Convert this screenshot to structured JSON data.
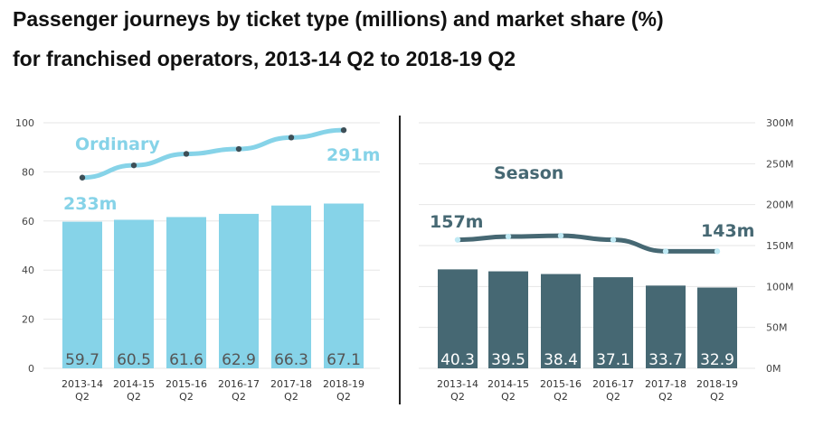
{
  "title_line1": "Passenger journeys by ticket type (millions) and market share (%)",
  "title_line2": "for franchised operators, 2013-14 Q2 to 2018-19 Q2",
  "colors": {
    "ordinary_bar": "#86d3e8",
    "ordinary_line": "#86d3e8",
    "season_bar": "#466873",
    "season_line": "#466873",
    "marker_dark": "#3d4f57",
    "marker_light": "#bfe9f4",
    "divider": "#222222"
  },
  "chart_data": [
    {
      "type": "bar",
      "name": "ordinary",
      "categories": [
        [
          "2013-14",
          "Q2"
        ],
        [
          "2014-15",
          "Q2"
        ],
        [
          "2015-16",
          "Q2"
        ],
        [
          "2016-17",
          "Q2"
        ],
        [
          "2017-18",
          "Q2"
        ],
        [
          "2018-19",
          "Q2"
        ]
      ],
      "values": [
        59.7,
        60.5,
        61.6,
        62.9,
        66.3,
        67.1
      ],
      "value_labels": [
        "59.7",
        "60.5",
        "61.6",
        "62.9",
        "66.3",
        "67.1"
      ],
      "ylim": [
        0,
        100
      ],
      "yticks": [
        0,
        20,
        40,
        60,
        80,
        100
      ],
      "line": {
        "name": "Ordinary",
        "values": [
          233,
          248,
          262,
          268,
          282,
          291
        ],
        "ylim": [
          0,
          300
        ],
        "start_label": "233m",
        "end_label": "291m"
      },
      "grid": true
    },
    {
      "type": "bar",
      "name": "season",
      "categories": [
        [
          "2013-14",
          "Q2"
        ],
        [
          "2014-15",
          "Q2"
        ],
        [
          "2015-16",
          "Q2"
        ],
        [
          "2016-17",
          "Q2"
        ],
        [
          "2017-18",
          "Q2"
        ],
        [
          "2018-19",
          "Q2"
        ]
      ],
      "values": [
        40.3,
        39.5,
        38.4,
        37.1,
        33.7,
        32.9
      ],
      "value_labels": [
        "40.3",
        "39.5",
        "38.4",
        "37.1",
        "33.7",
        "32.9"
      ],
      "ylim": [
        0,
        100
      ],
      "line": {
        "name": "Season",
        "values": [
          157,
          161,
          162,
          157,
          143,
          143
        ],
        "ylim": [
          0,
          300
        ],
        "start_label": "157m",
        "end_label": "143m"
      },
      "right_axis": {
        "ticks": [
          0,
          50,
          100,
          150,
          200,
          250,
          300
        ],
        "tick_labels": [
          "0M",
          "50M",
          "100M",
          "150M",
          "200M",
          "250M",
          "300M"
        ]
      },
      "grid": true
    }
  ]
}
